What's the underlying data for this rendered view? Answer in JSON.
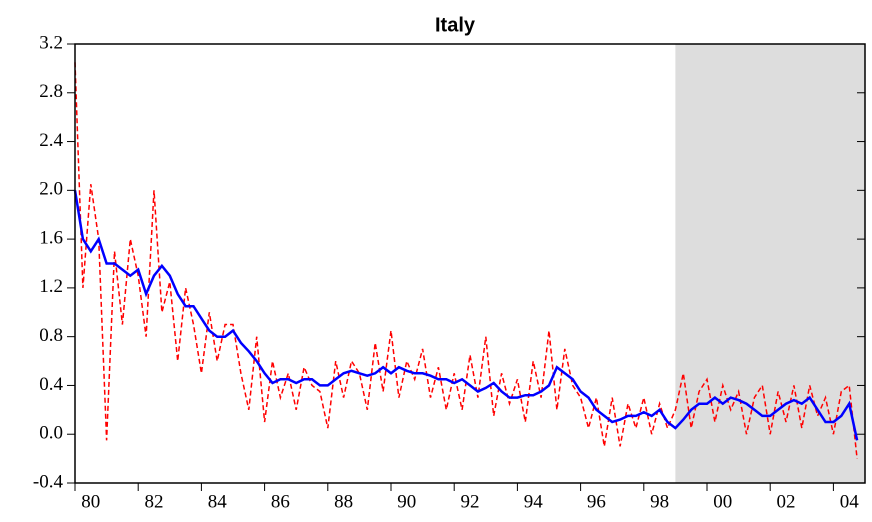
{
  "chart_data": {
    "type": "line",
    "title": "Italy",
    "x": [
      1980,
      1980.25,
      1980.5,
      1980.75,
      1981,
      1981.25,
      1981.5,
      1981.75,
      1982,
      1982.25,
      1982.5,
      1982.75,
      1983,
      1983.25,
      1983.5,
      1983.75,
      1984,
      1984.25,
      1984.5,
      1984.75,
      1985,
      1985.25,
      1985.5,
      1985.75,
      1986,
      1986.25,
      1986.5,
      1986.75,
      1987,
      1987.25,
      1987.5,
      1987.75,
      1988,
      1988.25,
      1988.5,
      1988.75,
      1989,
      1989.25,
      1989.5,
      1989.75,
      1990,
      1990.25,
      1990.5,
      1990.75,
      1991,
      1991.25,
      1991.5,
      1991.75,
      1992,
      1992.25,
      1992.5,
      1992.75,
      1993,
      1993.25,
      1993.5,
      1993.75,
      1994,
      1994.25,
      1994.5,
      1994.75,
      1995,
      1995.25,
      1995.5,
      1995.75,
      1996,
      1996.25,
      1996.5,
      1996.75,
      1997,
      1997.25,
      1997.5,
      1997.75,
      1998,
      1998.25,
      1998.5,
      1998.75,
      1999,
      1999.25,
      1999.5,
      1999.75,
      2000,
      2000.25,
      2000.5,
      2000.75,
      2001,
      2001.25,
      2001.5,
      2001.75,
      2002,
      2002.25,
      2002.5,
      2002.75,
      2003,
      2003.25,
      2003.5,
      2003.75,
      2004,
      2004.25,
      2004.5,
      2004.75
    ],
    "series": [
      {
        "color": "#ff0000",
        "dashed": true,
        "values": [
          3.05,
          1.2,
          2.05,
          1.6,
          -0.05,
          1.5,
          0.9,
          1.6,
          1.3,
          0.8,
          2.0,
          1.0,
          1.25,
          0.6,
          1.2,
          0.9,
          0.5,
          1.0,
          0.6,
          0.9,
          0.9,
          0.5,
          0.2,
          0.8,
          0.1,
          0.6,
          0.3,
          0.5,
          0.2,
          0.55,
          0.4,
          0.35,
          0.05,
          0.6,
          0.3,
          0.6,
          0.5,
          0.2,
          0.75,
          0.35,
          0.85,
          0.3,
          0.6,
          0.45,
          0.7,
          0.3,
          0.55,
          0.2,
          0.5,
          0.2,
          0.65,
          0.3,
          0.8,
          0.15,
          0.5,
          0.25,
          0.45,
          0.1,
          0.6,
          0.3,
          0.85,
          0.2,
          0.7,
          0.4,
          0.3,
          0.05,
          0.3,
          -0.1,
          0.3,
          -0.1,
          0.25,
          0.05,
          0.3,
          0.0,
          0.25,
          0.05,
          0.2,
          0.5,
          0.05,
          0.35,
          0.45,
          0.1,
          0.4,
          0.2,
          0.35,
          0.0,
          0.3,
          0.4,
          0.0,
          0.35,
          0.1,
          0.4,
          0.05,
          0.4,
          0.15,
          0.3,
          0.0,
          0.35,
          0.4,
          -0.2
        ]
      },
      {
        "color": "#0000ff",
        "dashed": false,
        "values": [
          2.0,
          1.6,
          1.5,
          1.6,
          1.4,
          1.4,
          1.35,
          1.3,
          1.35,
          1.15,
          1.3,
          1.38,
          1.3,
          1.15,
          1.05,
          1.05,
          0.95,
          0.85,
          0.8,
          0.8,
          0.85,
          0.75,
          0.68,
          0.6,
          0.5,
          0.42,
          0.45,
          0.45,
          0.42,
          0.45,
          0.45,
          0.4,
          0.4,
          0.45,
          0.5,
          0.52,
          0.5,
          0.48,
          0.5,
          0.55,
          0.5,
          0.55,
          0.52,
          0.5,
          0.5,
          0.48,
          0.45,
          0.45,
          0.42,
          0.45,
          0.4,
          0.35,
          0.38,
          0.42,
          0.35,
          0.3,
          0.3,
          0.32,
          0.32,
          0.35,
          0.4,
          0.55,
          0.5,
          0.45,
          0.35,
          0.3,
          0.2,
          0.15,
          0.1,
          0.12,
          0.15,
          0.15,
          0.18,
          0.15,
          0.2,
          0.1,
          0.05,
          0.12,
          0.2,
          0.25,
          0.25,
          0.3,
          0.25,
          0.3,
          0.28,
          0.25,
          0.2,
          0.15,
          0.15,
          0.2,
          0.25,
          0.28,
          0.25,
          0.3,
          0.2,
          0.1,
          0.1,
          0.15,
          0.25,
          -0.05
        ]
      }
    ],
    "shade": [
      1999,
      2005
    ],
    "shade_color": "#dddddd",
    "xlim": [
      1980,
      2005
    ],
    "xticks": [
      {
        "value": 1980,
        "label": "80"
      },
      {
        "value": 1982,
        "label": "82"
      },
      {
        "value": 1984,
        "label": "84"
      },
      {
        "value": 1986,
        "label": "86"
      },
      {
        "value": 1988,
        "label": "88"
      },
      {
        "value": 1990,
        "label": "90"
      },
      {
        "value": 1992,
        "label": "92"
      },
      {
        "value": 1994,
        "label": "94"
      },
      {
        "value": 1996,
        "label": "96"
      },
      {
        "value": 1998,
        "label": "98"
      },
      {
        "value": 2000,
        "label": "00"
      },
      {
        "value": 2002,
        "label": "02"
      },
      {
        "value": 2004,
        "label": "04"
      }
    ],
    "ylim": [
      -0.4,
      3.2
    ],
    "yticks": [
      -0.4,
      {
        "value": 0,
        "label": "0.0"
      },
      0.4,
      0.8,
      1.2,
      1.6,
      {
        "value": 2,
        "label": "2.0"
      },
      2.4,
      2.8,
      3.2
    ],
    "grid": false
  }
}
